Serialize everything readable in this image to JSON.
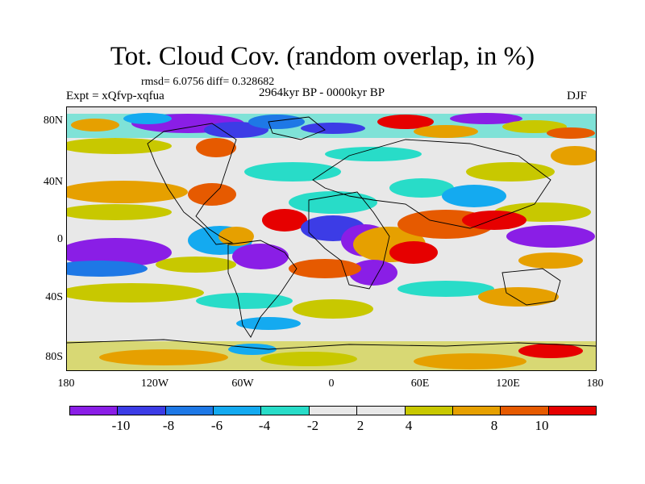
{
  "title": "Tot. Cloud Cov. (random overlap, in %)",
  "stats": "rmsd= 6.0756 diff= 0.328682",
  "experiment": "Expt = xQfvp-xqfua",
  "period": "2964kyr BP - 0000kyr BP",
  "season": "DJF",
  "axes": {
    "lat_labels": [
      "80N",
      "40N",
      "0",
      "40S",
      "80S"
    ],
    "lon_labels": [
      "180",
      "120W",
      "60W",
      "0",
      "60E",
      "120E",
      "180"
    ]
  },
  "colorbar": {
    "colors": [
      "#8a1ee6",
      "#3c3ce6",
      "#1e78e6",
      "#14aaf0",
      "#28dcc8",
      "#e8e8e8",
      "#e8e8e8",
      "#c8c800",
      "#e6a000",
      "#e65a00",
      "#e60000"
    ],
    "labels": [
      "-10",
      "-8",
      "-6",
      "-4",
      "-2",
      "2",
      "4",
      "8",
      "10"
    ]
  }
}
